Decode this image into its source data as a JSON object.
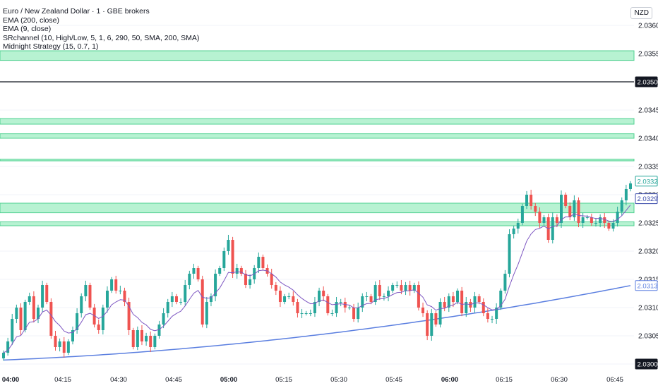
{
  "header": {
    "title": "Euro / New Zealand Dollar · 1 · GBE brokers",
    "currency": "NZD"
  },
  "indicators": [
    "EMA (200, close)",
    "EMA (9, close)",
    "SRchannel (10, High/Low, 5, 1, 6, 290, 50, SMA, 200, SMA)",
    "Midnight Strategy (15, 0.7, 1)"
  ],
  "colors": {
    "up": "#26a69a",
    "down": "#ef5350",
    "ema9": "#7e57c2",
    "ema200": "#5b7fe0",
    "zone_fill": "#b7f2d2",
    "zone_edge": "#52d191"
  },
  "chart_data": {
    "type": "candlestick",
    "ylim": [
      2.02995,
      2.03645
    ],
    "y_ticks": [
      "2.03600",
      "2.03550",
      "2.03500",
      "2.03450",
      "2.03400",
      "2.03350",
      "2.03300",
      "2.03250",
      "2.03200",
      "2.03150",
      "2.03100",
      "2.03050",
      "2.03000"
    ],
    "x_ticks": [
      {
        "label": "04:00",
        "bold": true
      },
      {
        "label": "04:15",
        "bold": false
      },
      {
        "label": "04:30",
        "bold": false
      },
      {
        "label": "04:45",
        "bold": false
      },
      {
        "label": "05:00",
        "bold": true
      },
      {
        "label": "05:15",
        "bold": false
      },
      {
        "label": "05:30",
        "bold": false
      },
      {
        "label": "05:45",
        "bold": false
      },
      {
        "label": "06:00",
        "bold": true
      },
      {
        "label": "06:15",
        "bold": false
      },
      {
        "label": "06:30",
        "bold": false
      },
      {
        "label": "06:45",
        "bold": false
      }
    ],
    "horizontal_line": {
      "value": 2.035,
      "label": "2.03500"
    },
    "bottom_label": {
      "value": 2.03,
      "label": "2.03000"
    },
    "zones": [
      [
        2.03538,
        2.03555
      ],
      [
        2.03425,
        2.03435
      ],
      [
        2.034,
        2.03408
      ],
      [
        2.0336,
        2.03363
      ],
      [
        2.03268,
        2.03285
      ],
      [
        2.03245,
        2.03252
      ]
    ],
    "price_labels": [
      {
        "value": 2.03324,
        "label": "2.03324",
        "series": "price"
      },
      {
        "value": 2.03293,
        "label": "2.03293",
        "series": "ema9"
      },
      {
        "value": 2.03139,
        "label": "2.03139",
        "series": "ema200"
      }
    ],
    "closes": [
      2.0302,
      2.0304,
      2.0308,
      2.031,
      2.0306,
      2.0311,
      2.0312,
      2.0308,
      2.031,
      2.0314,
      2.0311,
      2.0305,
      2.0303,
      2.0304,
      2.0302,
      2.0304,
      2.0306,
      2.0309,
      2.0312,
      2.0314,
      2.031,
      2.0307,
      2.0306,
      2.031,
      2.0313,
      2.0315,
      2.0313,
      2.0313,
      2.0311,
      2.0306,
      2.0303,
      2.0306,
      2.0304,
      2.0305,
      2.0303,
      2.0305,
      2.0307,
      2.0309,
      2.0311,
      2.0312,
      2.0311,
      2.0311,
      2.0314,
      2.0316,
      2.0317,
      2.0315,
      2.0307,
      2.0311,
      2.0312,
      2.0316,
      2.0317,
      2.032,
      2.0322,
      2.0316,
      2.0317,
      2.0316,
      2.0314,
      2.0315,
      2.0317,
      2.0319,
      2.0317,
      2.0316,
      2.0314,
      2.0313,
      2.0311,
      2.0312,
      2.0312,
      2.0311,
      2.0309,
      2.0309,
      2.0309,
      2.0309,
      2.0311,
      2.0313,
      2.0312,
      2.0309,
      2.0309,
      2.0311,
      2.0311,
      2.031,
      2.031,
      2.0308,
      2.031,
      2.0312,
      2.0312,
      2.0311,
      2.0314,
      2.0312,
      2.0312,
      2.0313,
      2.0314,
      2.0314,
      2.0313,
      2.0314,
      2.0313,
      2.0314,
      2.031,
      2.0309,
      2.0305,
      2.0309,
      2.0307,
      2.0311,
      2.031,
      2.0312,
      2.0311,
      2.0313,
      2.0309,
      2.0311,
      2.031,
      2.0312,
      2.0311,
      2.0309,
      2.0308,
      2.0308,
      2.031,
      2.0313,
      2.0316,
      2.0323,
      2.0324,
      2.0325,
      2.0328,
      2.033,
      2.0328,
      2.0327,
      2.0325,
      2.0326,
      2.0322,
      2.0326,
      2.0325,
      2.033,
      2.0328,
      2.0326,
      2.0329,
      2.0325,
      2.0326,
      2.0326,
      2.0325,
      2.0325,
      2.0326,
      2.0325,
      2.0324,
      2.0325,
      2.0327,
      2.0329,
      2.0331,
      2.0332
    ]
  }
}
